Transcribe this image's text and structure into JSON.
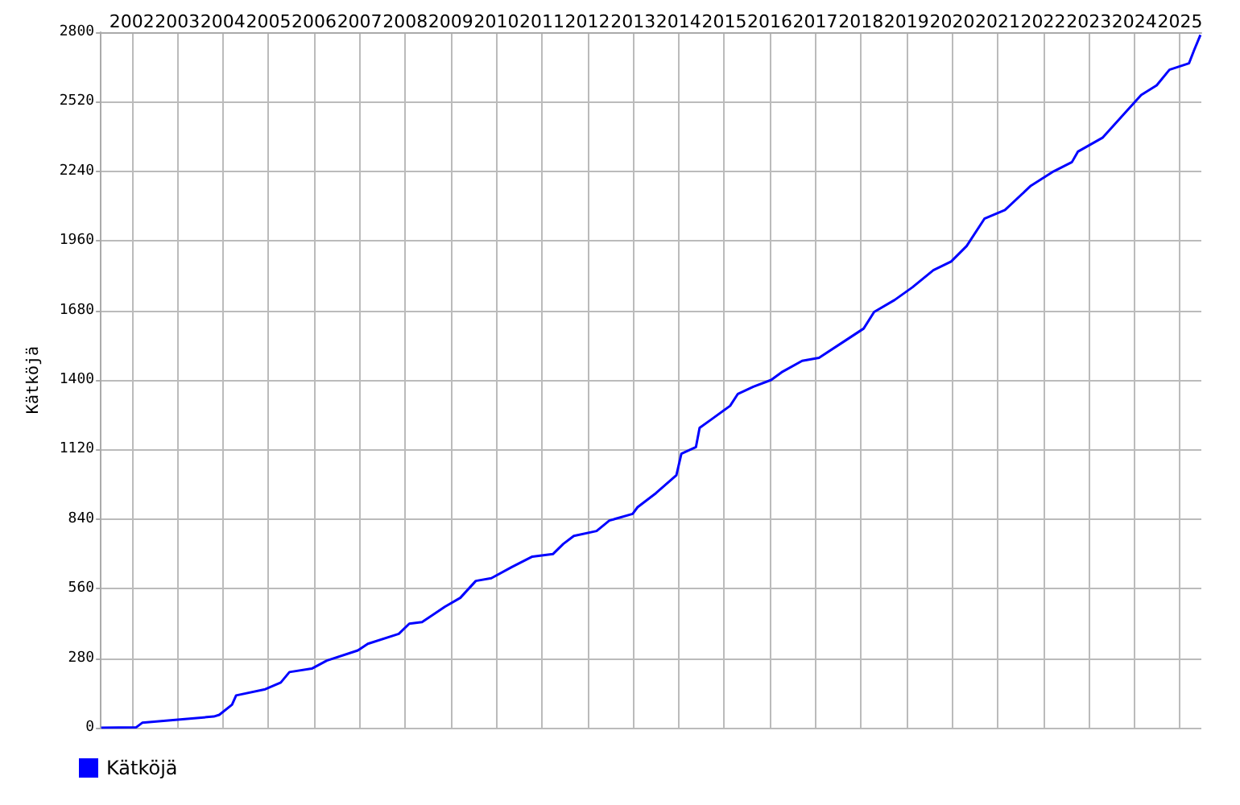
{
  "chart_data": {
    "type": "line",
    "ylabel": "Kätköjä",
    "x": [
      2001.33,
      2002.1,
      2002.23,
      2003.8,
      2003.92,
      2004.2,
      2004.29,
      2004.93,
      2005.27,
      2005.46,
      2005.95,
      2006.28,
      2006.96,
      2007.18,
      2007.86,
      2008.09,
      2008.37,
      2008.87,
      2009.21,
      2009.55,
      2009.89,
      2010.34,
      2010.79,
      2011.24,
      2011.47,
      2011.7,
      2012.2,
      2012.48,
      2012.99,
      2013.1,
      2013.5,
      2013.95,
      2014.06,
      2014.38,
      2014.46,
      2014.74,
      2015.13,
      2015.3,
      2015.64,
      2016.03,
      2016.26,
      2016.71,
      2017.08,
      2017.67,
      2018.06,
      2018.29,
      2018.74,
      2019.13,
      2019.59,
      2019.98,
      2020.32,
      2020.71,
      2021.16,
      2021.73,
      2022.23,
      2022.63,
      2022.76,
      2023.3,
      2023.81,
      2024.15,
      2024.49,
      2024.77,
      2025.2,
      2025.31,
      2025.45
    ],
    "series": [
      {
        "name": "Kätköjä",
        "color": "#0000ff",
        "values": [
          0,
          2,
          20,
          45,
          52,
          93,
          130,
          155,
          182,
          224,
          238,
          270,
          311,
          338,
          378,
          419,
          425,
          487,
          523,
          591,
          602,
          647,
          689,
          699,
          740,
          772,
          792,
          834,
          861,
          888,
          944,
          1016,
          1103,
          1130,
          1207,
          1244,
          1296,
          1344,
          1373,
          1400,
          1431,
          1477,
          1489,
          1560,
          1607,
          1674,
          1722,
          1773,
          1842,
          1877,
          1939,
          2049,
          2084,
          2182,
          2240,
          2277,
          2319,
          2375,
          2478,
          2547,
          2586,
          2649,
          2675,
          2727,
          2789
        ]
      }
    ],
    "xlim": [
      2001.32,
      2025.47
    ],
    "xticks": [
      2002,
      2003,
      2004,
      2005,
      2006,
      2007,
      2008,
      2009,
      2010,
      2011,
      2012,
      2013,
      2014,
      2015,
      2016,
      2017,
      2018,
      2019,
      2020,
      2021,
      2022,
      2023,
      2024,
      2025
    ],
    "ylim": [
      0,
      2800
    ],
    "yticks": [
      0,
      280,
      560,
      840,
      1120,
      1400,
      1680,
      1960,
      2240,
      2520,
      2800
    ],
    "grid": true,
    "legend": "bottom left",
    "marker": "none",
    "line_style": "solid"
  }
}
